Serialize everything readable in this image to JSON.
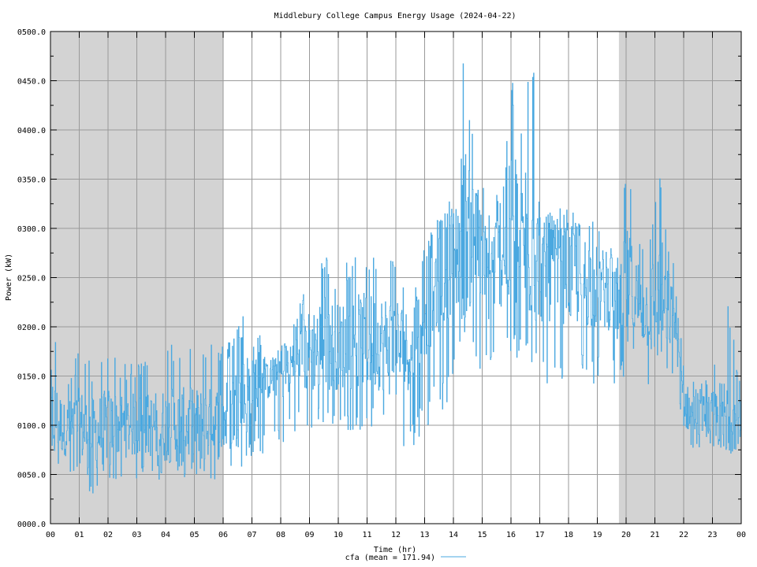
{
  "chart_data": {
    "type": "line",
    "title": "Middlebury College Campus Energy Usage (2024-04-22)",
    "xlabel": "Time (hr)",
    "ylabel": "Power (kW)",
    "xlim": [
      0,
      24
    ],
    "ylim": [
      0,
      500
    ],
    "grid": true,
    "legend_position": "bottom-center",
    "x_ticks": [
      "00",
      "01",
      "02",
      "03",
      "04",
      "05",
      "06",
      "07",
      "08",
      "09",
      "10",
      "11",
      "12",
      "13",
      "14",
      "15",
      "16",
      "17",
      "18",
      "19",
      "20",
      "21",
      "22",
      "23",
      "00"
    ],
    "y_ticks": [
      "0000.0",
      "0050.0",
      "0100.0",
      "0150.0",
      "0200.0",
      "0250.0",
      "0300.0",
      "0350.0",
      "0400.0",
      "0450.0",
      "0500.0"
    ],
    "y_tick_values": [
      0,
      50,
      100,
      150,
      200,
      250,
      300,
      350,
      400,
      450,
      500
    ],
    "shaded_periods": [
      [
        0,
        6
      ],
      [
        19.75,
        24
      ]
    ],
    "series": [
      {
        "name": "cfa (mean = 171.94)",
        "color": "#4aa8e0",
        "x": [
          0.0,
          0.5,
          1.0,
          1.5,
          2.0,
          2.5,
          3.0,
          3.5,
          4.0,
          4.5,
          5.0,
          5.5,
          6.0,
          6.5,
          7.0,
          7.5,
          8.0,
          8.5,
          9.0,
          9.5,
          10.0,
          10.5,
          11.0,
          11.5,
          12.0,
          12.5,
          13.0,
          13.5,
          14.0,
          14.25,
          14.5,
          14.75,
          15.0,
          15.25,
          15.5,
          15.75,
          16.0,
          16.25,
          16.5,
          16.75,
          17.0,
          17.5,
          18.0,
          18.5,
          19.0,
          19.5,
          19.75,
          20.0,
          20.25,
          20.5,
          20.75,
          21.0,
          21.25,
          21.5,
          21.75,
          22.0,
          22.5,
          23.0,
          23.5,
          24.0
        ],
        "high": [
          225,
          140,
          185,
          160,
          185,
          165,
          165,
          165,
          185,
          185,
          185,
          185,
          185,
          200,
          230,
          160,
          180,
          210,
          255,
          275,
          255,
          275,
          275,
          275,
          275,
          205,
          300,
          320,
          330,
          485,
          485,
          345,
          345,
          330,
          345,
          345,
          485,
          345,
          485,
          485,
          330,
          320,
          320,
          320,
          300,
          280,
          280,
          390,
          330,
          300,
          280,
          360,
          370,
          280,
          255,
          160,
          140,
          160,
          230,
          140
        ],
        "low": [
          70,
          45,
          45,
          25,
          45,
          45,
          45,
          45,
          45,
          45,
          45,
          45,
          45,
          45,
          70,
          70,
          70,
          95,
          95,
          95,
          95,
          95,
          95,
          95,
          70,
          70,
          95,
          95,
          140,
          160,
          160,
          160,
          140,
          160,
          160,
          160,
          160,
          160,
          160,
          160,
          140,
          140,
          140,
          140,
          140,
          140,
          140,
          140,
          140,
          140,
          140,
          140,
          140,
          140,
          140,
          70,
          70,
          70,
          70,
          70
        ],
        "mean": [
          115,
          95,
          100,
          90,
          100,
          100,
          100,
          100,
          100,
          100,
          100,
          100,
          105,
          120,
          140,
          150,
          155,
          165,
          175,
          185,
          180,
          185,
          185,
          185,
          180,
          175,
          225,
          255,
          270,
          290,
          300,
          285,
          260,
          250,
          270,
          270,
          290,
          270,
          290,
          290,
          255,
          255,
          250,
          250,
          240,
          235,
          215,
          235,
          230,
          225,
          215,
          220,
          225,
          215,
          200,
          120,
          110,
          110,
          110,
          105
        ],
        "stats_label": "cfa (mean = 171.94)",
        "mean_value": 171.94
      }
    ]
  }
}
